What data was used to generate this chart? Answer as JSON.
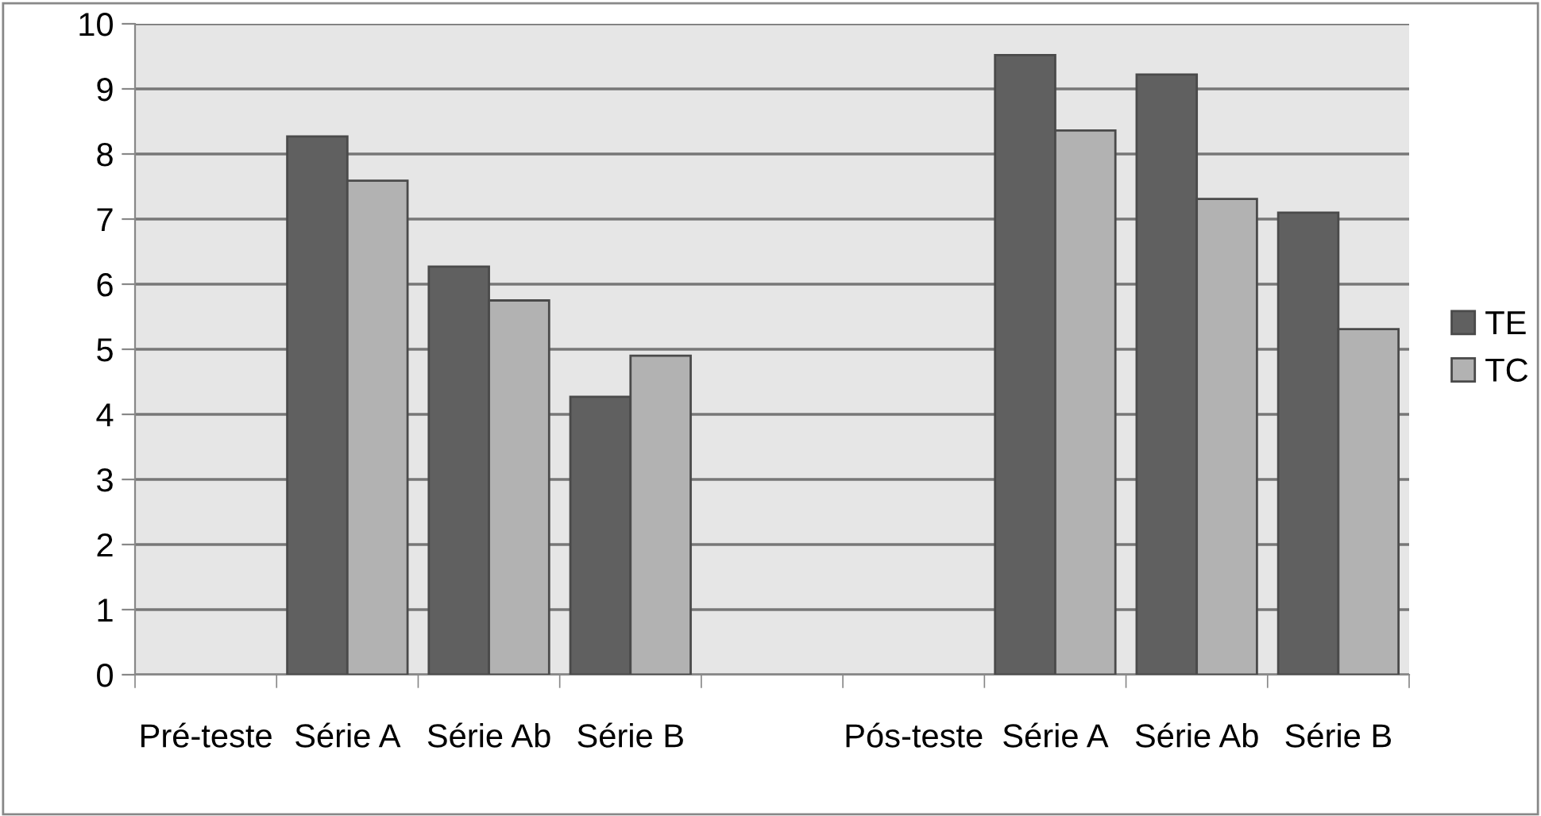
{
  "chart_data": {
    "type": "bar",
    "categories": [
      "Pré-teste",
      "Série A",
      "Série Ab",
      "Série B",
      null,
      "Pós-teste",
      "Série A",
      "Série Ab",
      "Série B"
    ],
    "series": [
      {
        "name": "TE",
        "color": "#606060",
        "values": [
          null,
          8.27,
          6.27,
          4.27,
          null,
          null,
          9.52,
          9.22,
          7.1
        ]
      },
      {
        "name": "TC",
        "color": "#b2b2b2",
        "values": [
          null,
          7.59,
          5.75,
          4.9,
          null,
          null,
          8.36,
          7.31,
          5.31
        ]
      }
    ],
    "ylim": [
      0,
      10
    ],
    "yticks": [
      0,
      1,
      2,
      3,
      4,
      5,
      6,
      7,
      8,
      9,
      10
    ],
    "grid": "y",
    "legend": "right"
  }
}
